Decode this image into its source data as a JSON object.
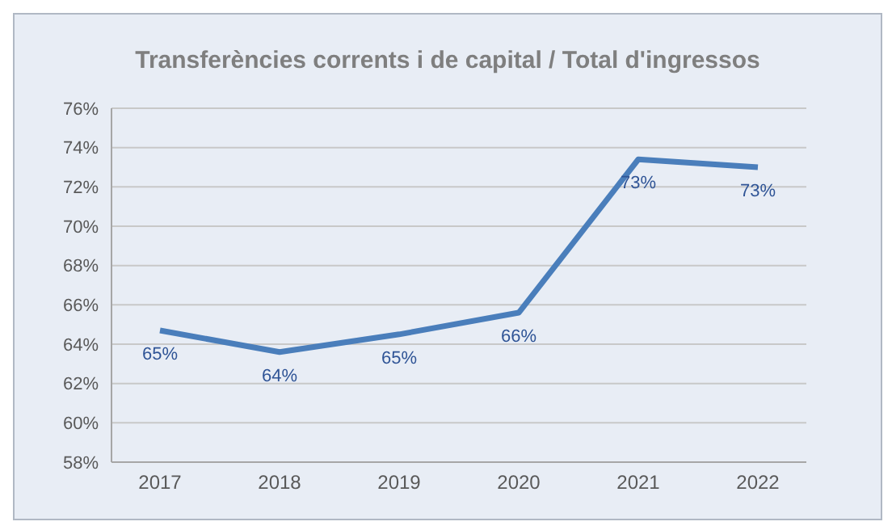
{
  "chart_data": {
    "type": "line",
    "title": "Transferències corrents i de capital / Total d'ingressos",
    "categories": [
      "2017",
      "2018",
      "2019",
      "2020",
      "2021",
      "2022"
    ],
    "series": [
      {
        "color": "#4a7ebb",
        "values": [
          64.7,
          63.6,
          64.5,
          65.6,
          73.4,
          73.0
        ],
        "value_labels": [
          "65%",
          "64%",
          "65%",
          "66%",
          "73%",
          "73%"
        ]
      }
    ],
    "ylim": [
      58,
      76
    ],
    "yticks": [
      {
        "value": 58,
        "label": "58%"
      },
      {
        "value": 60,
        "label": "60%"
      },
      {
        "value": 62,
        "label": "62%"
      },
      {
        "value": 64,
        "label": "64%"
      },
      {
        "value": 66,
        "label": "66%"
      },
      {
        "value": 68,
        "label": "68%"
      },
      {
        "value": 70,
        "label": "70%"
      },
      {
        "value": 72,
        "label": "72%"
      },
      {
        "value": 74,
        "label": "74%"
      },
      {
        "value": 76,
        "label": "76%"
      }
    ],
    "grid": "y",
    "marker": "none",
    "line_style": "solid"
  }
}
